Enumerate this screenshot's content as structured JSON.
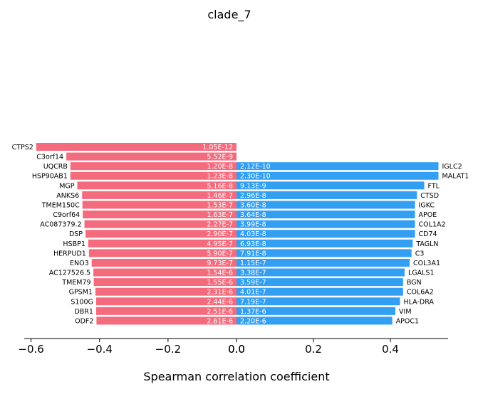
{
  "chart_data": {
    "type": "bar",
    "orientation": "horizontal",
    "title": "clade_7",
    "xlabel": "Spearman correlation coefficient",
    "colors": {
      "negative": "#f46b7d",
      "positive": "#339ff2",
      "axis": "#000000"
    },
    "left_panel": {
      "xlim": [
        -0.62,
        0.0
      ],
      "ticks": [
        -0.6,
        -0.4,
        -0.2,
        0.0
      ],
      "tick_labels": [
        "−0.6",
        "−0.4",
        "−0.2",
        "0.0"
      ],
      "series": [
        {
          "gene": "CTPS2",
          "value": -0.585,
          "pvalue": "1.05E-12"
        },
        {
          "gene": "C3orf14",
          "value": -0.497,
          "pvalue": "5.52E-9"
        },
        {
          "gene": "UQCRB",
          "value": -0.485,
          "pvalue": "1.20E-8"
        },
        {
          "gene": "HSP90AB1",
          "value": -0.485,
          "pvalue": "1.23E-8"
        },
        {
          "gene": "MGP",
          "value": -0.465,
          "pvalue": "5.16E-8"
        },
        {
          "gene": "ANKS6",
          "value": -0.451,
          "pvalue": "1.46E-7"
        },
        {
          "gene": "TMEM150C",
          "value": -0.45,
          "pvalue": "1.53E-7"
        },
        {
          "gene": "C9orf64",
          "value": -0.449,
          "pvalue": "1.63E-7"
        },
        {
          "gene": "AC087379.2",
          "value": -0.444,
          "pvalue": "2.27E-7"
        },
        {
          "gene": "DSP",
          "value": -0.441,
          "pvalue": "2.90E-7"
        },
        {
          "gene": "HSBP1",
          "value": -0.433,
          "pvalue": "4.95E-7"
        },
        {
          "gene": "HERPUD1",
          "value": -0.431,
          "pvalue": "5.90E-7"
        },
        {
          "gene": "ENO3",
          "value": -0.423,
          "pvalue": "9.73E-7"
        },
        {
          "gene": "AC127526.5",
          "value": -0.418,
          "pvalue": "1.54E-6"
        },
        {
          "gene": "TMEM79",
          "value": -0.417,
          "pvalue": "1.55E-6"
        },
        {
          "gene": "GPSM1",
          "value": -0.412,
          "pvalue": "2.31E-6"
        },
        {
          "gene": "S100G",
          "value": -0.41,
          "pvalue": "2.44E-6"
        },
        {
          "gene": "DBR1",
          "value": -0.41,
          "pvalue": "2.51E-6"
        },
        {
          "gene": "ODF2",
          "value": -0.409,
          "pvalue": "2.61E-6"
        }
      ]
    },
    "right_panel": {
      "xlim": [
        0.0,
        0.55
      ],
      "ticks": [
        0.0,
        0.2,
        0.4
      ],
      "tick_labels": [
        "0.0",
        "0.2",
        "0.4"
      ],
      "series": [
        {
          "gene": null,
          "value": null,
          "pvalue": null
        },
        {
          "gene": null,
          "value": null,
          "pvalue": null
        },
        {
          "gene": "IGLC2",
          "value": 0.525,
          "pvalue": "2.12E-10"
        },
        {
          "gene": "MALAT1",
          "value": 0.525,
          "pvalue": "2.30E-10"
        },
        {
          "gene": "FTL",
          "value": 0.488,
          "pvalue": "9.13E-9"
        },
        {
          "gene": "CTSD",
          "value": 0.469,
          "pvalue": "2.96E-8"
        },
        {
          "gene": "IGKC",
          "value": 0.464,
          "pvalue": "3.60E-8"
        },
        {
          "gene": "APOE",
          "value": 0.464,
          "pvalue": "3.64E-8"
        },
        {
          "gene": "COL1A2",
          "value": 0.464,
          "pvalue": "3.99E-8"
        },
        {
          "gene": "CD74",
          "value": 0.464,
          "pvalue": "4.03E-8"
        },
        {
          "gene": "TAGLN",
          "value": 0.458,
          "pvalue": "6.93E-8"
        },
        {
          "gene": "C3",
          "value": 0.455,
          "pvalue": "7.91E-8"
        },
        {
          "gene": "COL3A1",
          "value": 0.45,
          "pvalue": "1.15E-7"
        },
        {
          "gene": "LGALS1",
          "value": 0.437,
          "pvalue": "3.38E-7"
        },
        {
          "gene": "BGN",
          "value": 0.433,
          "pvalue": "3.59E-7"
        },
        {
          "gene": "COL6A2",
          "value": 0.433,
          "pvalue": "4.01E-7"
        },
        {
          "gene": "HLA-DRA",
          "value": 0.425,
          "pvalue": "7.19E-7"
        },
        {
          "gene": "VIM",
          "value": 0.413,
          "pvalue": "1.37E-6"
        },
        {
          "gene": "APOC1",
          "value": 0.405,
          "pvalue": "2.20E-6"
        }
      ]
    }
  }
}
